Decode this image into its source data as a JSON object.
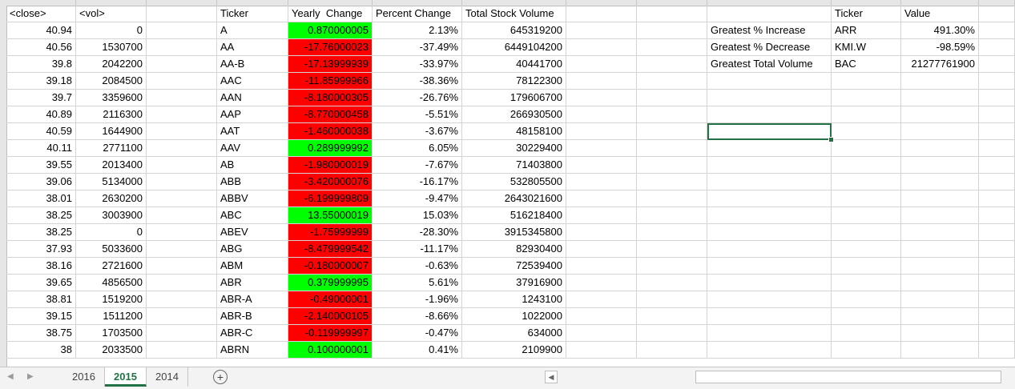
{
  "headers": {
    "close": "<close>",
    "vol": "<vol>",
    "ticker": "Ticker",
    "yearly_change": "Yearly  Change",
    "percent_change": "Percent Change",
    "total_volume": "Total Stock Volume"
  },
  "summary": {
    "ticker_header": "Ticker",
    "value_header": "Value",
    "rows": [
      {
        "label": "Greatest % Increase",
        "ticker": "ARR",
        "value": "491.30%"
      },
      {
        "label": "Greatest % Decrease",
        "ticker": "KMI.W",
        "value": "-98.59%"
      },
      {
        "label": "Greatest Total Volume",
        "ticker": "BAC",
        "value": "21277761900"
      }
    ]
  },
  "rows": [
    {
      "close": "40.94",
      "vol": "0",
      "ticker": "A",
      "yc": "0.870000005",
      "pc": "2.13%",
      "tsv": "645319200",
      "status": "pos"
    },
    {
      "close": "40.56",
      "vol": "1530700",
      "ticker": "AA",
      "yc": "-17.76000023",
      "pc": "-37.49%",
      "tsv": "6449104200",
      "status": "neg"
    },
    {
      "close": "39.8",
      "vol": "2042200",
      "ticker": "AA-B",
      "yc": "-17.13999939",
      "pc": "-33.97%",
      "tsv": "40441700",
      "status": "neg"
    },
    {
      "close": "39.18",
      "vol": "2084500",
      "ticker": "AAC",
      "yc": "-11.85999966",
      "pc": "-38.36%",
      "tsv": "78122300",
      "status": "neg"
    },
    {
      "close": "39.7",
      "vol": "3359600",
      "ticker": "AAN",
      "yc": "-8.180000305",
      "pc": "-26.76%",
      "tsv": "179606700",
      "status": "neg"
    },
    {
      "close": "40.89",
      "vol": "2116300",
      "ticker": "AAP",
      "yc": "-8.770000458",
      "pc": "-5.51%",
      "tsv": "266930500",
      "status": "neg"
    },
    {
      "close": "40.59",
      "vol": "1644900",
      "ticker": "AAT",
      "yc": "-1.460000038",
      "pc": "-3.67%",
      "tsv": "48158100",
      "status": "neg"
    },
    {
      "close": "40.11",
      "vol": "2771100",
      "ticker": "AAV",
      "yc": "0.289999992",
      "pc": "6.05%",
      "tsv": "30229400",
      "status": "pos"
    },
    {
      "close": "39.55",
      "vol": "2013400",
      "ticker": "AB",
      "yc": "-1.980000019",
      "pc": "-7.67%",
      "tsv": "71403800",
      "status": "neg"
    },
    {
      "close": "39.06",
      "vol": "5134000",
      "ticker": "ABB",
      "yc": "-3.420000076",
      "pc": "-16.17%",
      "tsv": "532805500",
      "status": "neg"
    },
    {
      "close": "38.01",
      "vol": "2630200",
      "ticker": "ABBV",
      "yc": "-6.199999809",
      "pc": "-9.47%",
      "tsv": "2643021600",
      "status": "neg"
    },
    {
      "close": "38.25",
      "vol": "3003900",
      "ticker": "ABC",
      "yc": "13.55000019",
      "pc": "15.03%",
      "tsv": "516218400",
      "status": "pos"
    },
    {
      "close": "38.25",
      "vol": "0",
      "ticker": "ABEV",
      "yc": "-1.75999999",
      "pc": "-28.30%",
      "tsv": "3915345800",
      "status": "neg"
    },
    {
      "close": "37.93",
      "vol": "5033600",
      "ticker": "ABG",
      "yc": "-8.479999542",
      "pc": "-11.17%",
      "tsv": "82930400",
      "status": "neg"
    },
    {
      "close": "38.16",
      "vol": "2721600",
      "ticker": "ABM",
      "yc": "-0.180000007",
      "pc": "-0.63%",
      "tsv": "72539400",
      "status": "neg"
    },
    {
      "close": "39.65",
      "vol": "4856500",
      "ticker": "ABR",
      "yc": "0.379999995",
      "pc": "5.61%",
      "tsv": "37916900",
      "status": "pos"
    },
    {
      "close": "38.81",
      "vol": "1519200",
      "ticker": "ABR-A",
      "yc": "-0.49000001",
      "pc": "-1.96%",
      "tsv": "1243100",
      "status": "neg"
    },
    {
      "close": "39.15",
      "vol": "1511200",
      "ticker": "ABR-B",
      "yc": "-2.140000105",
      "pc": "-8.66%",
      "tsv": "1022000",
      "status": "neg"
    },
    {
      "close": "38.75",
      "vol": "1703500",
      "ticker": "ABR-C",
      "yc": "-0.119999997",
      "pc": "-0.47%",
      "tsv": "634000",
      "status": "neg"
    },
    {
      "close": "38",
      "vol": "2033500",
      "ticker": "ABRN",
      "yc": "0.100000001",
      "pc": "0.41%",
      "tsv": "2109900",
      "status": "pos"
    }
  ],
  "sheet_tabs": [
    {
      "label": "2016",
      "active": false
    },
    {
      "label": "2015",
      "active": true
    },
    {
      "label": "2014",
      "active": false
    }
  ],
  "colors": {
    "positive": "#00ff00",
    "negative": "#ff0000",
    "accent": "#217346"
  },
  "icons": {
    "prev_sheet": "triangle-left-icon",
    "next_sheet": "triangle-right-icon",
    "add_sheet": "plus-circle-icon",
    "scroll_left": "scroll-left-icon"
  }
}
